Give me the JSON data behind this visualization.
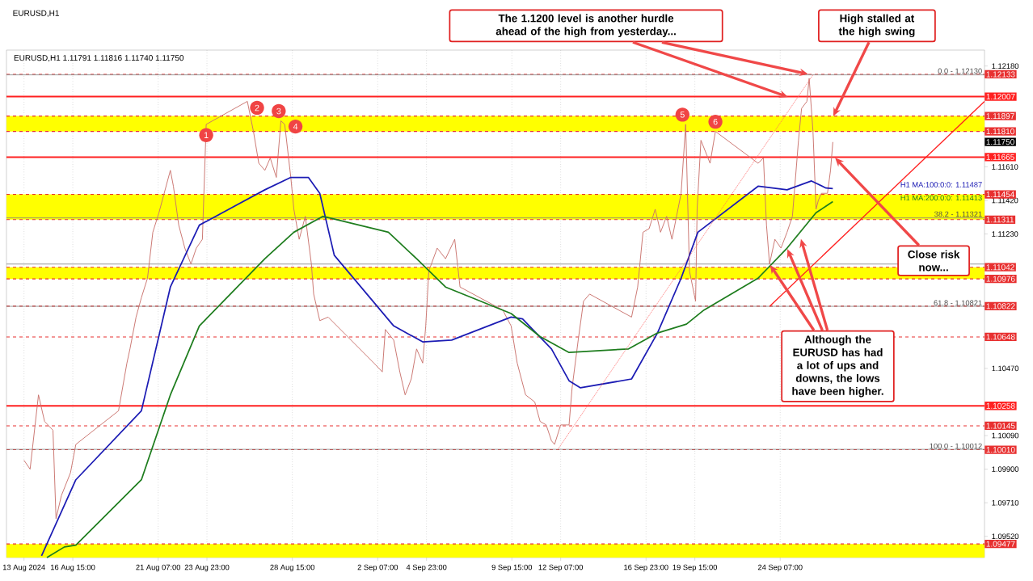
{
  "chart_data": {
    "type": "line",
    "title": "EURUSD,H1  1.11791 1.11816 1.11740 1.11750",
    "subtitle": "EURUSD,H1",
    "xlim": [
      "2024-08-13T00:00",
      "2024-10-05T11:00"
    ],
    "ylim": [
      1.094,
      1.1227
    ],
    "xticks": [
      {
        "value": "2024-08-13T23:00",
        "label": "13 Aug 2024"
      },
      {
        "value": "2024-08-16T15:00",
        "label": "16 Aug 15:00"
      },
      {
        "value": "2024-08-21T07:00",
        "label": "21 Aug 07:00"
      },
      {
        "value": "2024-08-23T23:00",
        "label": "23 Aug 23:00"
      },
      {
        "value": "2024-08-28T15:00",
        "label": "28 Aug 15:00"
      },
      {
        "value": "2024-09-02T07:00",
        "label": "2 Sep 07:00"
      },
      {
        "value": "2024-09-04T23:00",
        "label": "4 Sep 23:00"
      },
      {
        "value": "2024-09-09T15:00",
        "label": "9 Sep 15:00"
      },
      {
        "value": "2024-09-12T07:00",
        "label": "12 Sep 07:00"
      },
      {
        "value": "2024-09-16T23:00",
        "label": "16 Sep 23:00"
      },
      {
        "value": "2024-09-19T15:00",
        "label": "19 Sep 15:00"
      },
      {
        "value": "2024-09-24T07:00",
        "label": "24 Sep 07:00"
      }
    ],
    "yticks": [
      {
        "value": 1.0952,
        "label": "1.09520"
      },
      {
        "value": 1.0971,
        "label": "1.09710"
      },
      {
        "value": 1.099,
        "label": "1.09900"
      },
      {
        "value": 1.1009,
        "label": "1.10090"
      },
      {
        "value": 1.1047,
        "label": "1.10470"
      },
      {
        "value": 1.1123,
        "label": "1.11230"
      },
      {
        "value": 1.1142,
        "label": "1.11420"
      },
      {
        "value": 1.1161,
        "label": "1.11610"
      },
      {
        "value": 1.1218,
        "label": "1.12180"
      }
    ],
    "grid": "x",
    "series": [
      {
        "color": "#c8706a",
        "x": [
          "2024-08-13T23:00",
          "2024-08-14T07:00",
          "2024-08-14T18:00",
          "2024-08-15T02:00",
          "2024-08-15T13:00",
          "2024-08-15T17:00",
          "2024-08-16T00:00",
          "2024-08-16T12:00",
          "2024-08-16T19:00",
          "2024-08-19T03:00",
          "2024-08-19T14:00",
          "2024-08-19T18:00",
          "2024-08-20T02:00",
          "2024-08-20T09:00",
          "2024-08-20T17:00",
          "2024-08-21T00:00",
          "2024-08-21T08:00",
          "2024-08-21T23:00",
          "2024-08-22T03:00",
          "2024-08-22T10:00",
          "2024-08-22T18:00",
          "2024-08-23T02:00",
          "2024-08-23T09:00",
          "2024-08-23T17:00",
          "2024-08-23T22:00",
          "2024-08-26T04:00",
          "2024-08-26T12:00",
          "2024-08-26T19:00",
          "2024-08-27T03:00",
          "2024-08-27T10:00",
          "2024-08-27T18:00",
          "2024-08-28T00:00",
          "2024-08-28T05:00",
          "2024-08-28T13:00",
          "2024-08-28T17:00",
          "2024-08-29T00:00",
          "2024-08-29T08:00",
          "2024-08-29T16:00",
          "2024-08-29T19:00",
          "2024-08-30T03:00",
          "2024-08-30T14:00",
          "2024-09-02T02:00",
          "2024-09-02T13:00",
          "2024-09-02T17:00",
          "2024-09-03T04:00",
          "2024-09-03T12:00",
          "2024-09-03T19:00",
          "2024-09-04T03:00",
          "2024-09-04T10:00",
          "2024-09-04T18:00",
          "2024-09-04T22:00",
          "2024-09-05T02:00",
          "2024-09-05T13:00",
          "2024-09-06T00:00",
          "2024-09-06T12:00",
          "2024-09-06T19:00",
          "2024-09-09T03:00",
          "2024-09-09T14:00",
          "2024-09-09T22:00",
          "2024-09-10T09:00",
          "2024-09-10T21:00",
          "2024-09-11T04:00",
          "2024-09-11T12:00",
          "2024-09-11T19:00",
          "2024-09-11T23:00",
          "2024-09-12T07:00",
          "2024-09-12T18:00",
          "2024-09-12T22:00",
          "2024-09-13T06:00",
          "2024-09-13T13:00",
          "2024-09-13T21:00",
          "2024-09-16T04:00",
          "2024-09-16T12:00",
          "2024-09-16T19:00",
          "2024-09-17T03:00",
          "2024-09-17T11:00",
          "2024-09-17T18:00",
          "2024-09-18T02:00",
          "2024-09-18T09:00",
          "2024-09-18T21:00",
          "2024-09-19T03:00",
          "2024-09-19T08:00",
          "2024-09-19T16:00",
          "2024-09-19T18:00",
          "2024-09-19T23:00",
          "2024-09-20T11:00",
          "2024-09-20T18:00",
          "2024-09-23T02:00",
          "2024-09-23T09:00",
          "2024-09-23T13:00",
          "2024-09-23T17:00",
          "2024-09-24T00:00",
          "2024-09-24T08:00",
          "2024-09-24T16:00",
          "2024-09-24T23:00",
          "2024-09-25T07:00",
          "2024-09-25T11:00",
          "2024-09-25T18:00",
          "2024-09-25T21:00",
          "2024-09-26T02:00",
          "2024-09-26T06:00",
          "2024-09-26T09:00",
          "2024-09-26T13:00",
          "2024-09-26T21:00",
          "2024-09-27T01:00",
          "2024-09-27T04:00"
        ],
        "values": [
          1.0995,
          1.099,
          1.1032,
          1.1017,
          1.1012,
          1.0962,
          1.0975,
          1.0988,
          1.1004,
          1.1023,
          1.105,
          1.1058,
          1.1076,
          1.1087,
          1.1098,
          1.1124,
          1.1135,
          1.1159,
          1.115,
          1.1128,
          1.1115,
          1.1106,
          1.1115,
          1.112,
          1.1185,
          1.1198,
          1.1181,
          1.1163,
          1.1159,
          1.1166,
          1.1155,
          1.1187,
          1.1185,
          1.1155,
          1.1137,
          1.112,
          1.1133,
          1.1106,
          1.1089,
          1.1074,
          1.1076,
          1.105,
          1.1045,
          1.1069,
          1.1063,
          1.1045,
          1.1032,
          1.1041,
          1.1058,
          1.105,
          1.1071,
          1.1102,
          1.1115,
          1.1109,
          1.112,
          1.1093,
          1.108,
          1.1071,
          1.105,
          1.1032,
          1.1028,
          1.1017,
          1.1015,
          1.1006,
          1.1004,
          1.1015,
          1.1015,
          1.1036,
          1.1063,
          1.1085,
          1.1089,
          1.1076,
          1.1093,
          1.1124,
          1.1126,
          1.1137,
          1.1124,
          1.1133,
          1.112,
          1.1146,
          1.1185,
          1.1102,
          1.1085,
          1.1137,
          1.1176,
          1.1163,
          1.1181,
          1.1163,
          1.1166,
          1.1128,
          1.1106,
          1.112,
          1.1115,
          1.1124,
          1.1133,
          1.1176,
          1.1194,
          1.1198,
          1.1211,
          1.1181,
          1.1137,
          1.1142,
          1.1146,
          1.1146,
          1.1159,
          1.1175
        ]
      },
      {
        "color": "#1c1cb4",
        "x": [
          "2024-08-14T22:00",
          "2024-08-16T19:00",
          "2024-08-20T09:00",
          "2024-08-21T23:00",
          "2024-08-23T13:00",
          "2024-08-27T03:00",
          "2024-08-28T13:00",
          "2024-08-29T12:00",
          "2024-08-30T03:00",
          "2024-08-30T22:00",
          "2024-09-03T04:00",
          "2024-09-04T18:00",
          "2024-09-06T08:00",
          "2024-09-09T14:00",
          "2024-09-10T05:00",
          "2024-09-11T19:00",
          "2024-09-12T18:00",
          "2024-09-13T09:00",
          "2024-09-16T04:00",
          "2024-09-17T14:00",
          "2024-09-18T21:00",
          "2024-09-19T19:00",
          "2024-09-23T02:00",
          "2024-09-24T16:00",
          "2024-09-26T00:00",
          "2024-09-26T19:00",
          "2024-09-27T04:00"
        ],
        "values": [
          1.0941,
          1.0984,
          1.1023,
          1.1093,
          1.1128,
          1.1148,
          1.1155,
          1.1155,
          1.1146,
          1.1111,
          1.1071,
          1.1062,
          1.1063,
          1.1076,
          1.1075,
          1.1058,
          1.104,
          1.1036,
          1.1041,
          1.1067,
          1.1098,
          1.1124,
          1.115,
          1.1148,
          1.1153,
          1.1149,
          1.11487
        ]
      },
      {
        "color": "#1e7d1e",
        "x": [
          "2024-08-15T05:00",
          "2024-08-16T04:00",
          "2024-08-16T19:00",
          "2024-08-20T09:00",
          "2024-08-21T23:00",
          "2024-08-23T13:00",
          "2024-08-27T03:00",
          "2024-08-28T17:00",
          "2024-08-30T07:00",
          "2024-09-02T21:00",
          "2024-09-04T10:00",
          "2024-09-06T00:00",
          "2024-09-09T14:00",
          "2024-09-11T04:00",
          "2024-09-12T18:00",
          "2024-09-16T00:00",
          "2024-09-17T14:00",
          "2024-09-19T04:00",
          "2024-09-20T03:00",
          "2024-09-23T02:00",
          "2024-09-24T16:00",
          "2024-09-26T06:00",
          "2024-09-27T04:00"
        ],
        "values": [
          1.094,
          1.0946,
          1.0947,
          1.0984,
          1.1032,
          1.1071,
          1.1109,
          1.1124,
          1.1133,
          1.1124,
          1.1109,
          1.1093,
          1.1078,
          1.1065,
          1.1056,
          1.1058,
          1.1067,
          1.1072,
          1.108,
          1.1098,
          1.1115,
          1.1135,
          1.11413
        ]
      },
      {
        "color": "#ff2020",
        "x": [
          "2024-09-23T17:00",
          "2024-10-05T11:00"
        ],
        "values": [
          1.1082,
          1.1198
        ]
      },
      {
        "color": "#ff6060",
        "line_style": "dotted",
        "x": [
          "2024-09-12T03:00",
          "2024-09-26T02:00"
        ],
        "values": [
          1.1001,
          1.1213
        ]
      }
    ],
    "bands": [
      {
        "axis": "y",
        "from": 1.1181,
        "to": 1.11897,
        "color": "#ffff00"
      },
      {
        "axis": "y",
        "from": 1.11311,
        "to": 1.11454,
        "color": "#ffff00"
      },
      {
        "axis": "y",
        "from": 1.10976,
        "to": 1.11042,
        "color": "#ffff00"
      },
      {
        "axis": "y",
        "from": 1.094,
        "to": 1.09477,
        "color": "#ffff00"
      }
    ],
    "ref_lines": [
      {
        "axis": "y",
        "value": 1.12133,
        "label": "1.12133",
        "color": "#e83030",
        "line_style": "dashed"
      },
      {
        "axis": "y",
        "value": 1.12007,
        "label": "1.12007",
        "color": "#ff2020",
        "line_style": "solid"
      },
      {
        "axis": "y",
        "value": 1.11897,
        "label": "1.11897",
        "color": "#e83030",
        "line_style": "dashed"
      },
      {
        "axis": "y",
        "value": 1.1181,
        "label": "1.11810",
        "color": "#e83030",
        "line_style": "dashed"
      },
      {
        "axis": "y",
        "value": 1.11665,
        "label": "1.11665",
        "color": "#ff2020",
        "line_style": "solid"
      },
      {
        "axis": "y",
        "value": 1.11454,
        "label": "1.11454",
        "color": "#e83030",
        "line_style": "dashed"
      },
      {
        "axis": "y",
        "value": 1.11311,
        "label": "1.11311",
        "color": "#e83030",
        "line_style": "dashed"
      },
      {
        "axis": "y",
        "value": 1.11042,
        "label": "1.11042",
        "color": "#e83030",
        "line_style": "dashed"
      },
      {
        "axis": "y",
        "value": 1.10976,
        "label": "1.10976",
        "color": "#e83030",
        "line_style": "dashed"
      },
      {
        "axis": "y",
        "value": 1.10822,
        "label": "1.10822",
        "color": "#e83030",
        "line_style": "dashed"
      },
      {
        "axis": "y",
        "value": 1.10648,
        "label": "1.10648",
        "color": "#e83030",
        "line_style": "dashed"
      },
      {
        "axis": "y",
        "value": 1.10258,
        "label": "1.10258",
        "color": "#ff2020",
        "line_style": "solid"
      },
      {
        "axis": "y",
        "value": 1.10145,
        "label": "1.10145",
        "color": "#e83030",
        "line_style": "dashed"
      },
      {
        "axis": "y",
        "value": 1.1001,
        "label": "1.10010",
        "color": "#e83030",
        "line_style": "dashed"
      },
      {
        "axis": "y",
        "value": 1.09477,
        "label": "1.09477",
        "color": "#e83030",
        "line_style": "dashed"
      },
      {
        "axis": "y",
        "value": 1.1213,
        "color": "#808080",
        "line_style": "solid"
      },
      {
        "axis": "y",
        "value": 1.11321,
        "color": "#808080",
        "line_style": "solid"
      },
      {
        "axis": "y",
        "value": 1.1106,
        "color": "#808080",
        "line_style": "solid"
      },
      {
        "axis": "y",
        "value": 1.10821,
        "color": "#808080",
        "line_style": "solid"
      },
      {
        "axis": "y",
        "value": 1.10012,
        "color": "#808080",
        "line_style": "solid"
      }
    ],
    "annotations": [
      {
        "text": "The 1.1200 level is another hurdle ahead of the high from yesterday...",
        "x": "2024-09-25T21:00",
        "y": 1.12133
      },
      {
        "text": "High stalled at the high swing",
        "x": "2024-09-27T04:00",
        "y": 1.1189
      },
      {
        "text": "Close risk now...",
        "x": "2024-09-27T06:00",
        "y": 1.11665
      },
      {
        "text": "Although the EURUSD has had a lot of ups and downs, the lows have been higher.",
        "x": "2024-09-23T17:00",
        "y": 1.1106
      },
      {
        "text": "1",
        "x": "2024-08-23T22:00",
        "y": 1.1185
      },
      {
        "text": "2",
        "x": "2024-08-26T04:00",
        "y": 1.1198
      },
      {
        "text": "3",
        "x": "2024-08-28T00:00",
        "y": 1.1187
      },
      {
        "text": "4",
        "x": "2024-08-28T05:00",
        "y": 1.1185
      },
      {
        "text": "5",
        "x": "2024-09-19T03:00",
        "y": 1.1185
      },
      {
        "text": "6",
        "x": "2024-09-20T18:00",
        "y": 1.1181
      },
      "0.0 - 1.12130",
      "38.2 - 1.11321",
      "61.8 - 1.10821",
      "100.0 - 1.10012",
      "H1 MA:100:0:0: 1.11487",
      "H1 MA:200:0:0: 1.11413",
      "1.11750"
    ]
  }
}
